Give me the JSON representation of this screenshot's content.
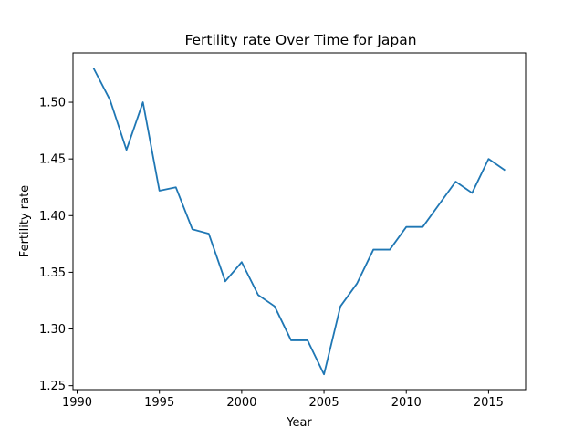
{
  "chart_data": {
    "type": "line",
    "title": "Fertility rate Over Time for Japan",
    "xlabel": "Year",
    "ylabel": "Fertility rate",
    "x": [
      1991,
      1992,
      1993,
      1994,
      1995,
      1996,
      1997,
      1998,
      1999,
      2000,
      2001,
      2002,
      2003,
      2004,
      2005,
      2006,
      2007,
      2008,
      2009,
      2010,
      2011,
      2012,
      2013,
      2014,
      2015,
      2016
    ],
    "series": [
      {
        "values": [
          1.53,
          1.502,
          1.458,
          1.5,
          1.422,
          1.425,
          1.388,
          1.384,
          1.342,
          1.359,
          1.33,
          1.32,
          1.29,
          1.29,
          1.26,
          1.32,
          1.34,
          1.37,
          1.37,
          1.39,
          1.39,
          1.41,
          1.43,
          1.42,
          1.45,
          1.44
        ],
        "color": "#1f77b4"
      }
    ],
    "xlim": [
      1989.75,
      2017.25
    ],
    "ylim": [
      1.2465,
      1.5435
    ],
    "xticks": [
      1990,
      1995,
      2000,
      2005,
      2010,
      2015
    ],
    "xtick_labels": [
      "1990",
      "1995",
      "2000",
      "2005",
      "2010",
      "2015"
    ],
    "yticks": [
      1.25,
      1.3,
      1.35,
      1.4,
      1.45,
      1.5
    ],
    "ytick_labels": [
      "1.25",
      "1.30",
      "1.35",
      "1.40",
      "1.45",
      "1.50"
    ],
    "grid": false
  }
}
